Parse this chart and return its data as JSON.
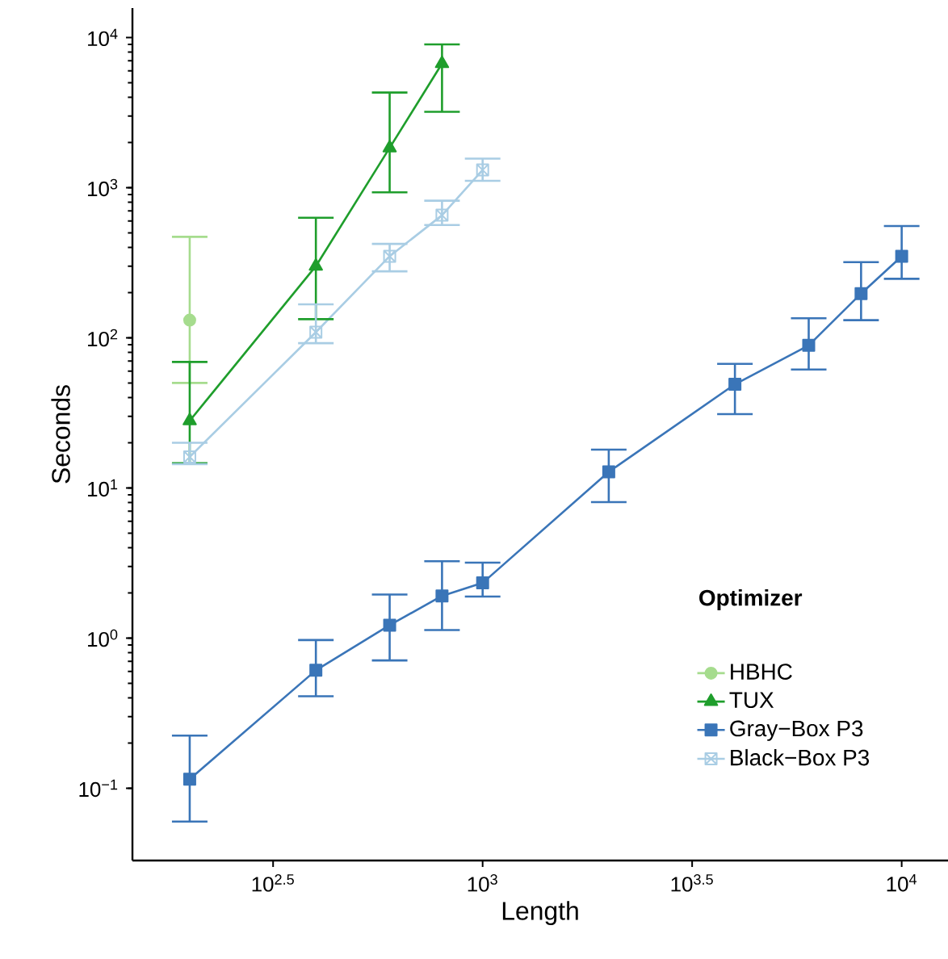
{
  "chart_data": {
    "type": "line",
    "xlabel": "Length",
    "ylabel": "Seconds",
    "legend_title": "Optimizer",
    "legend": "bottom right",
    "log": "xy",
    "x": [
      200,
      400,
      600,
      800,
      1000,
      2000,
      4000,
      6000,
      8000,
      10000
    ],
    "xlim": [
      146,
      12900
    ],
    "ylim": [
      0.033,
      15700
    ],
    "xticks": [
      {
        "value": 316.23,
        "label": "10$^{2.5}$"
      },
      {
        "value": 1000,
        "label": "10$^{3}$"
      },
      {
        "value": 3162.3,
        "label": "10$^{3.5}$"
      },
      {
        "value": 10000,
        "label": "10$^{4}$"
      }
    ],
    "yticks": [
      {
        "value": 0.1,
        "label": "10$^{−1}$"
      },
      {
        "value": 1,
        "label": "10$^{0}$"
      },
      {
        "value": 10,
        "label": "10$^{1}$"
      },
      {
        "value": 100,
        "label": "10$^{2}$"
      },
      {
        "value": 1000,
        "label": "10$^{3}$"
      },
      {
        "value": 10000,
        "label": "10$^{4}$"
      }
    ],
    "series": [
      {
        "name": "HBHC",
        "color": "#a6dc8e",
        "marker": "circle",
        "values": [
          131,
          null,
          null,
          null,
          null,
          null,
          null,
          null,
          null,
          null
        ],
        "errors": [
          [
            50,
            470
          ],
          null,
          null,
          null,
          null,
          null,
          null,
          null,
          null,
          null
        ]
      },
      {
        "name": "TUX",
        "color": "#1f9e2c",
        "marker": "triangle",
        "values": [
          28,
          300,
          1840,
          6700,
          null,
          null,
          null,
          null,
          null,
          null
        ],
        "errors": [
          [
            14.6,
            69
          ],
          [
            133,
            630
          ],
          [
            930,
            4300
          ],
          [
            3200,
            9000
          ],
          null,
          null,
          null,
          null,
          null,
          null
        ]
      },
      {
        "name": "Gray−Box P3",
        "color": "#3a75b8",
        "marker": "square",
        "values": [
          0.115,
          0.61,
          1.22,
          1.91,
          2.33,
          12.8,
          49,
          89,
          197,
          349
        ],
        "errors": [
          [
            0.06,
            0.224
          ],
          [
            0.41,
            0.97
          ],
          [
            0.71,
            1.95
          ],
          [
            1.13,
            3.25
          ],
          [
            1.89,
            3.18
          ],
          [
            8.05,
            18
          ],
          [
            31,
            67
          ],
          [
            61.5,
            135
          ],
          [
            131,
            319
          ],
          [
            247,
            555
          ]
        ]
      },
      {
        "name": "Black−Box P3",
        "color": "#a9cde4",
        "marker": "cross",
        "values": [
          16.1,
          109,
          349,
          655,
          1310,
          null,
          null,
          null,
          null,
          null
        ],
        "errors": [
          [
            14.4,
            20
          ],
          [
            92,
            167
          ],
          [
            277,
            422
          ],
          [
            564,
            818
          ],
          [
            1110,
            1560
          ],
          null,
          null,
          null,
          null,
          null
        ]
      }
    ]
  }
}
